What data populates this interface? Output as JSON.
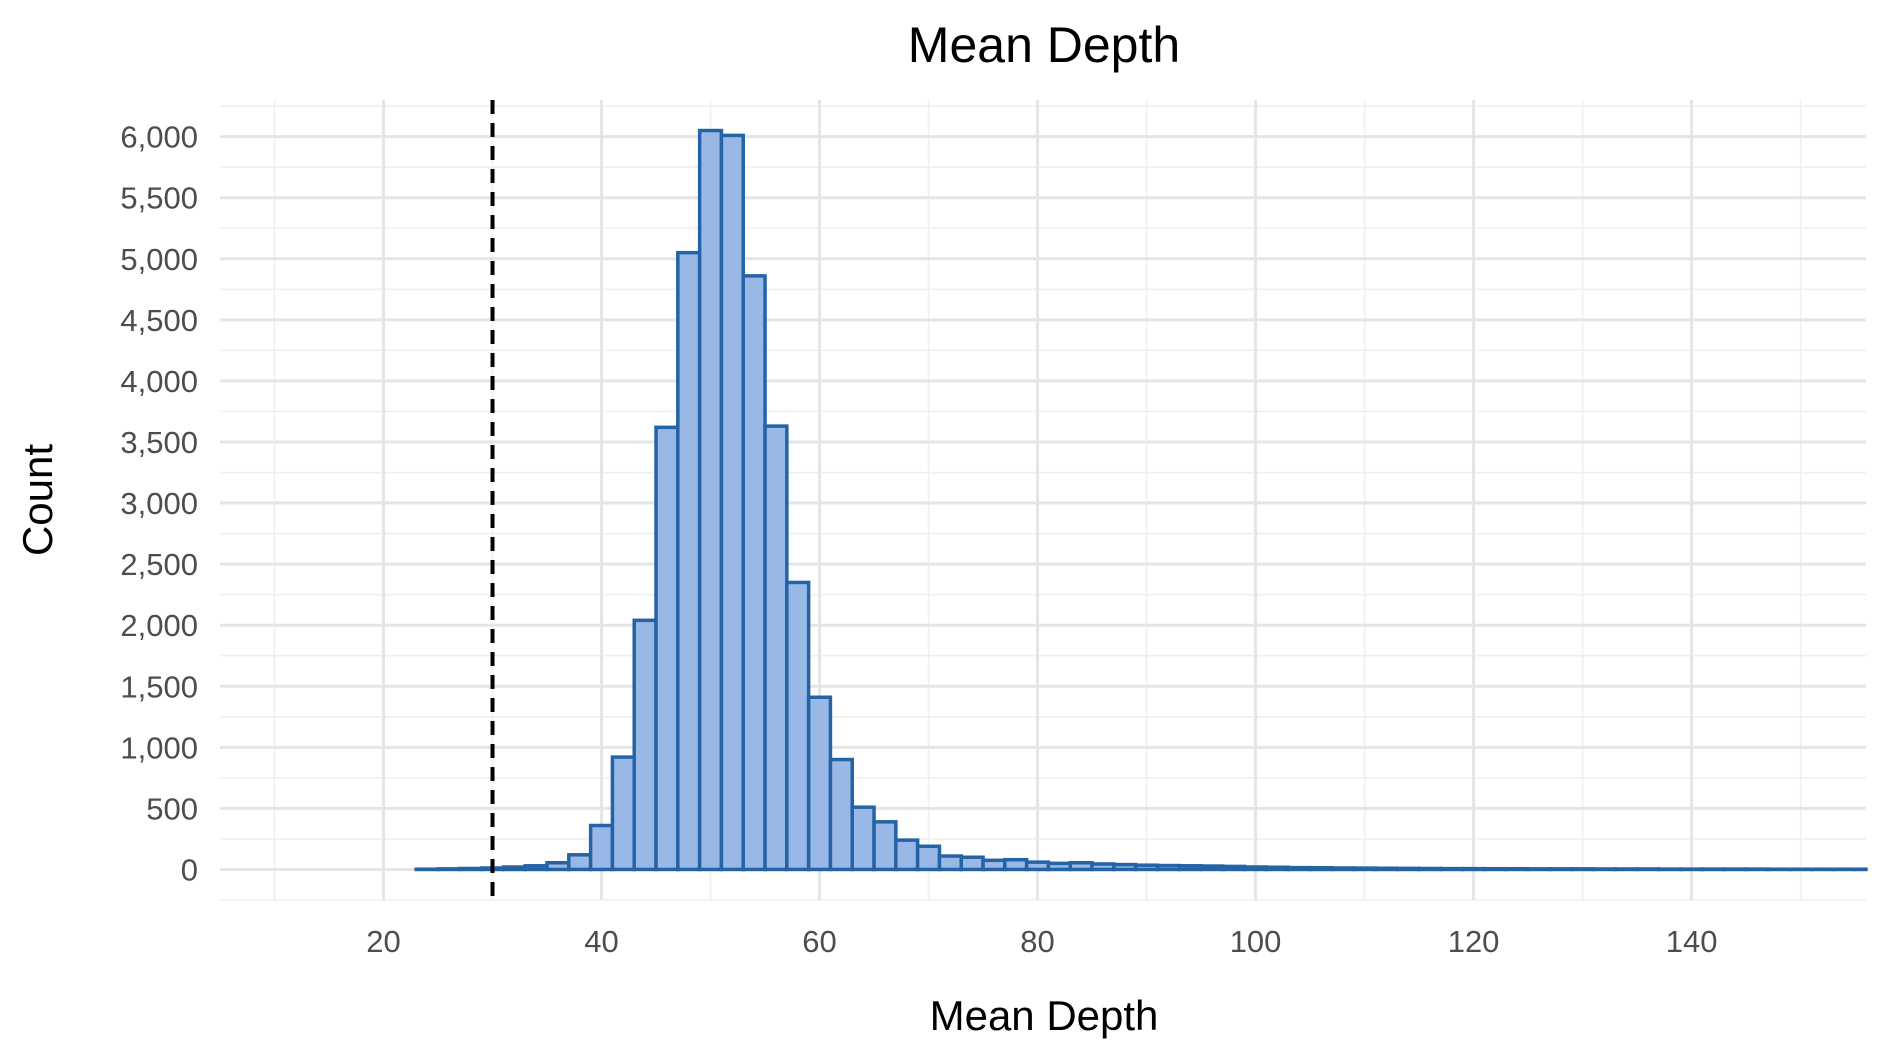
{
  "chart_data": {
    "type": "bar",
    "title": "Mean Depth",
    "xlabel": "Mean Depth",
    "ylabel": "Count",
    "xlim": [
      5,
      156
    ],
    "ylim": [
      -250,
      6300
    ],
    "x_ticks": [
      20,
      40,
      60,
      80,
      100,
      120,
      140
    ],
    "x_tick_labels": [
      "20",
      "40",
      "60",
      "80",
      "100",
      "120",
      "140"
    ],
    "y_ticks": [
      0,
      500,
      1000,
      1500,
      2000,
      2500,
      3000,
      3500,
      4000,
      4500,
      5000,
      5500,
      6000
    ],
    "y_tick_labels": [
      "0",
      "500",
      "1,000",
      "1,500",
      "2,000",
      "2,500",
      "3,000",
      "3,500",
      "4,000",
      "4,500",
      "5,000",
      "5,500",
      "6,000"
    ],
    "grid": true,
    "bin_width": 2,
    "bin_start": 23,
    "values": [
      2,
      5,
      8,
      12,
      20,
      30,
      55,
      120,
      360,
      920,
      2040,
      3620,
      5050,
      6050,
      6010,
      4860,
      3630,
      2350,
      1410,
      900,
      510,
      390,
      240,
      190,
      110,
      100,
      75,
      80,
      60,
      50,
      55,
      45,
      40,
      35,
      32,
      30,
      28,
      25,
      20,
      18,
      15,
      14,
      12,
      11,
      10,
      9,
      8,
      7,
      7,
      6,
      6,
      5,
      5,
      5,
      4,
      4,
      4,
      3,
      3,
      3,
      3,
      3,
      2,
      2,
      2,
      2,
      2
    ],
    "reference_line": {
      "x": 30,
      "style": "dashed",
      "color": "#000000"
    },
    "colors": {
      "bar_fill": "#9ab8e5",
      "bar_stroke": "#2463a6",
      "grid": "#e5e5e5",
      "tick_text": "#4d4d4d"
    }
  }
}
